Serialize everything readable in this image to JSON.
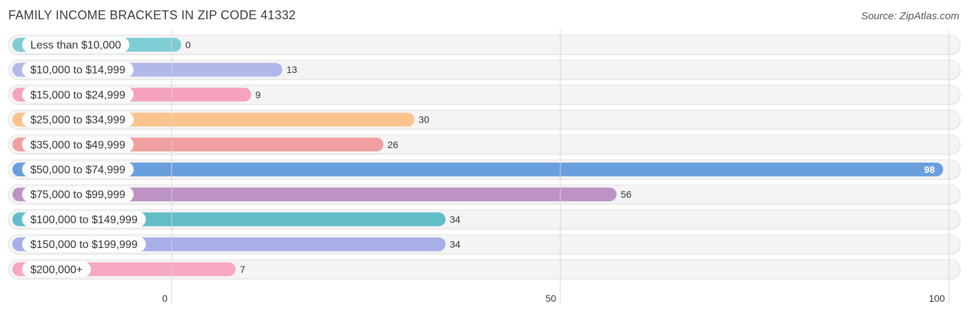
{
  "header": {
    "title": "FAMILY INCOME BRACKETS IN ZIP CODE 41332",
    "source": "Source: ZipAtlas.com"
  },
  "chart_data": {
    "type": "bar",
    "orientation": "horizontal",
    "title": "FAMILY INCOME BRACKETS IN ZIP CODE 41332",
    "xlabel": "",
    "ylabel": "",
    "xlim": [
      0,
      100
    ],
    "ticks": [
      0,
      50,
      100
    ],
    "tick_labels": [
      "0",
      "50",
      "100"
    ],
    "grid": true,
    "categories": [
      "Less than $10,000",
      "$10,000 to $14,999",
      "$15,000 to $24,999",
      "$25,000 to $34,999",
      "$35,000 to $49,999",
      "$50,000 to $74,999",
      "$75,000 to $99,999",
      "$100,000 to $149,999",
      "$150,000 to $199,999",
      "$200,000+"
    ],
    "values": [
      0,
      13,
      9,
      30,
      26,
      98,
      56,
      34,
      34,
      7
    ],
    "value_labels": [
      "0",
      "13",
      "9",
      "30",
      "26",
      "98",
      "56",
      "34",
      "34",
      "7"
    ],
    "colors": [
      "#7fcdd4",
      "#b1b8ea",
      "#f5a3bd",
      "#fbc48e",
      "#f0a09e",
      "#6a9fdd",
      "#bd93c6",
      "#62bdc9",
      "#a7aee8",
      "#f7a8c4"
    ]
  }
}
